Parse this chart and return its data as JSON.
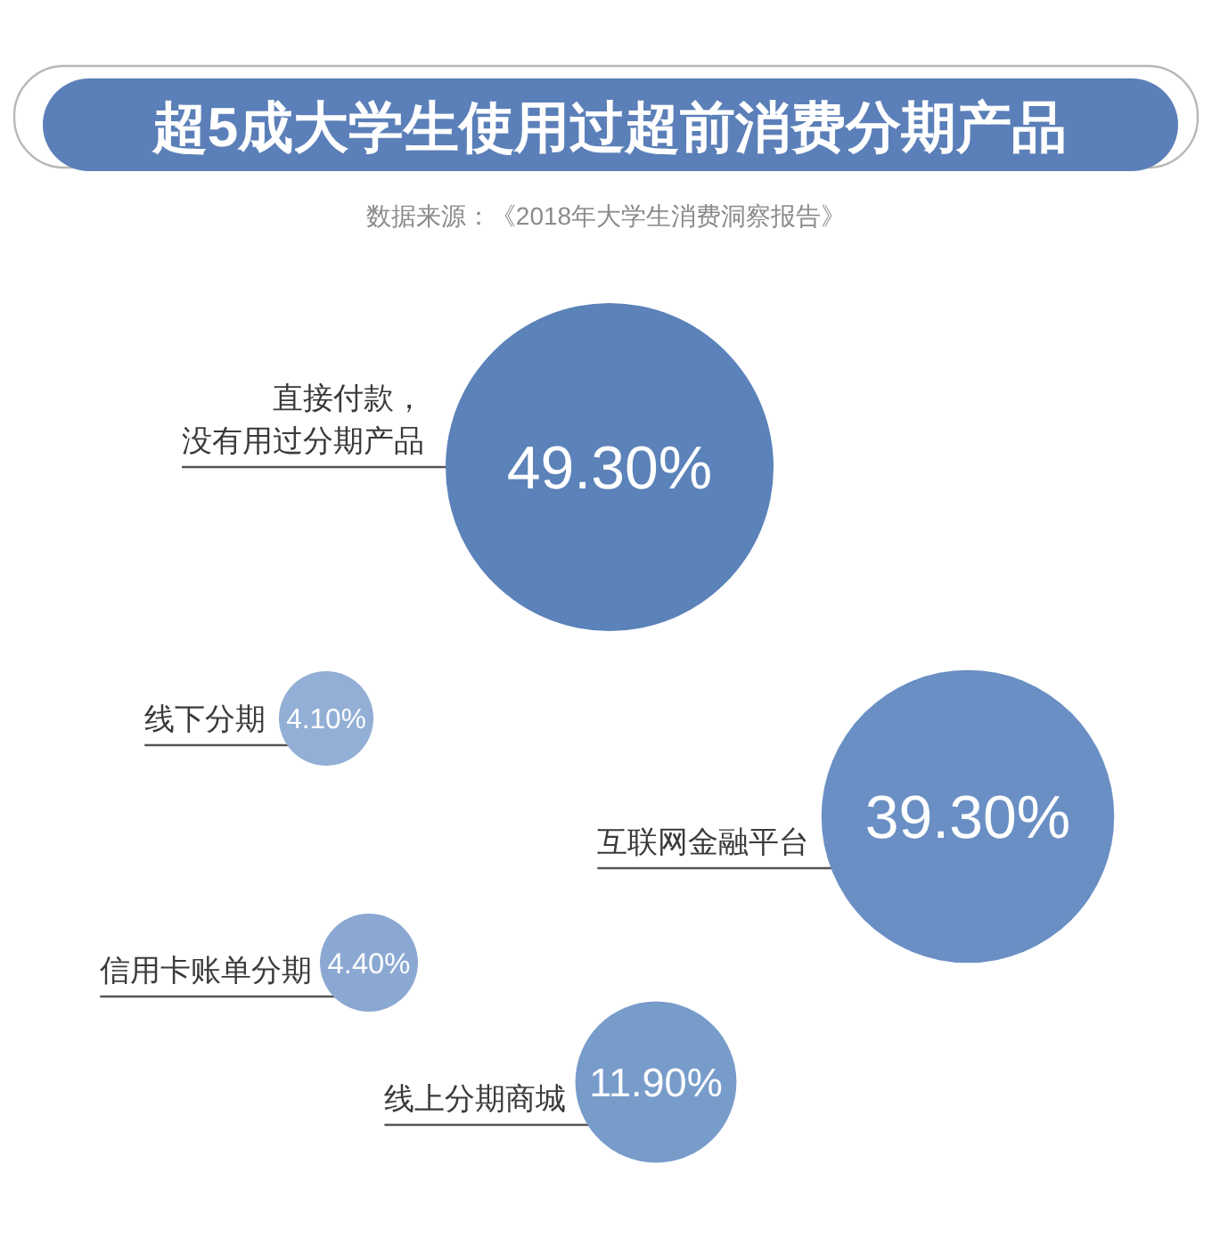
{
  "chart_data": {
    "type": "other",
    "title": "超5成大学生使用过超前消费分期产品",
    "annotations": [
      "数据来源：《2018年大学生消费洞察报告》"
    ],
    "categories": [
      "直接付款，没有用过分期产品",
      "线下分期",
      "互联网金融平台",
      "信用卡账单分期",
      "线上分期商城"
    ],
    "values": [
      49.3,
      4.1,
      39.3,
      4.4,
      11.9
    ],
    "value_labels": [
      "49.30%",
      "4.10%",
      "39.30%",
      "4.40%",
      "11.90%"
    ],
    "colors": [
      "#5b82b9",
      "#93afd6",
      "#6a8fc4",
      "#8aa8d2",
      "#789cca"
    ]
  }
}
